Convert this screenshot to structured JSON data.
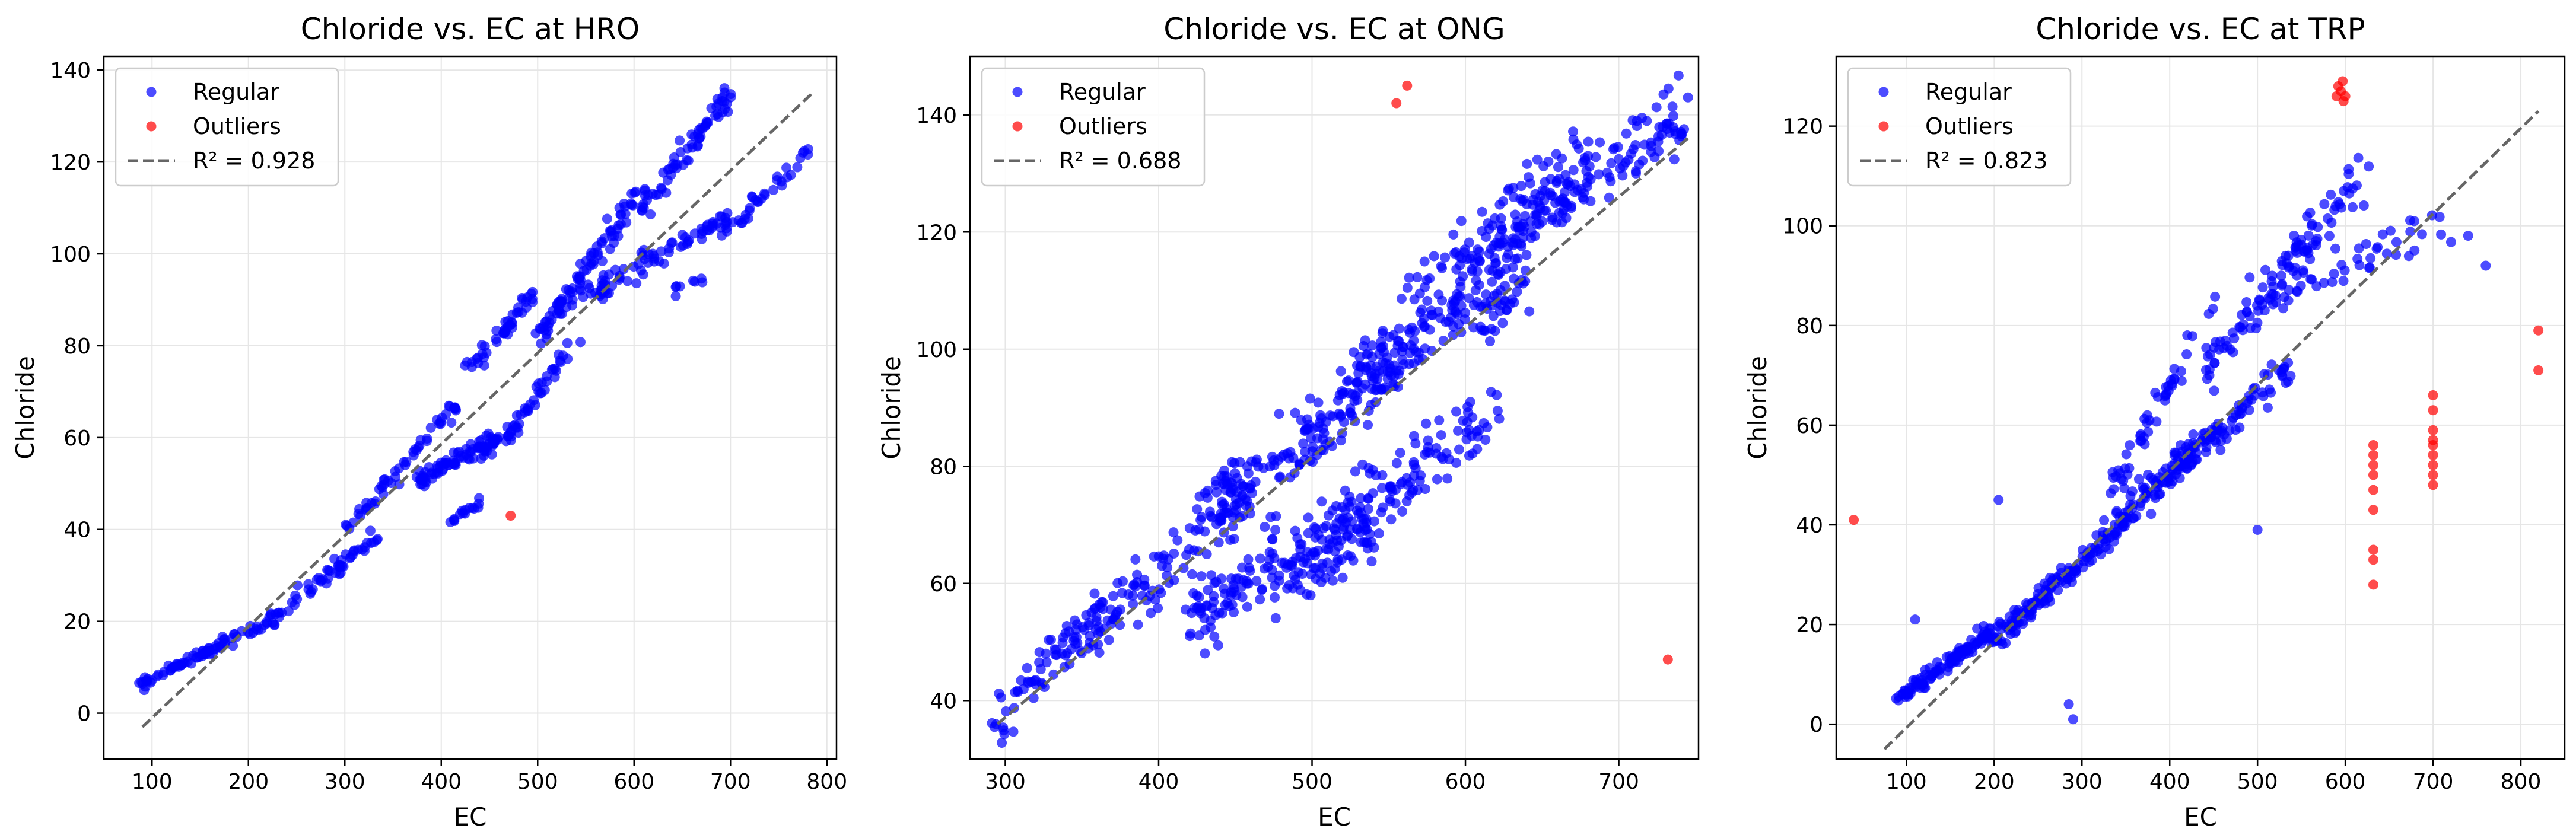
{
  "legend_labels": {
    "regular": "Regular",
    "outliers": "Outliers",
    "fit_prefix": "R² = "
  },
  "colors": {
    "regular": "#0000ff",
    "outliers": "#ff0000",
    "fit": "#666666",
    "grid": "#e6e6e6"
  },
  "chart_data": [
    {
      "type": "scatter",
      "title": "Chloride vs. EC at HRO",
      "xlabel": "EC",
      "ylabel": "Chloride",
      "xlim": [
        50,
        810
      ],
      "ylim": [
        -10,
        143
      ],
      "xticks": [
        100,
        200,
        300,
        400,
        500,
        600,
        700,
        800
      ],
      "yticks": [
        0,
        20,
        40,
        60,
        80,
        100,
        120,
        140
      ],
      "grid": true,
      "legend_position": "top-left",
      "r_squared": "0.928",
      "fit_line": {
        "x": [
          90,
          785
        ],
        "y": [
          -3,
          135
        ]
      },
      "series": [
        {
          "name": "Regular",
          "segments": [
            {
              "x0": 88,
              "y0": 6,
              "x1": 200,
              "y1": 18,
              "n": 70,
              "spread": 1.5
            },
            {
              "x0": 200,
              "y0": 17,
              "x1": 330,
              "y1": 38,
              "n": 70,
              "spread": 2.5
            },
            {
              "x0": 300,
              "y0": 40,
              "x1": 420,
              "y1": 68,
              "n": 55,
              "spread": 2.5
            },
            {
              "x0": 370,
              "y0": 50,
              "x1": 480,
              "y1": 62,
              "n": 95,
              "spread": 3
            },
            {
              "x0": 400,
              "y0": 40,
              "x1": 440,
              "y1": 46,
              "n": 15,
              "spread": 1.5
            },
            {
              "x0": 430,
              "y0": 75,
              "x1": 500,
              "y1": 92,
              "n": 45,
              "spread": 2.5
            },
            {
              "x0": 470,
              "y0": 60,
              "x1": 540,
              "y1": 82,
              "n": 35,
              "spread": 2.5
            },
            {
              "x0": 500,
              "y0": 82,
              "x1": 600,
              "y1": 112,
              "n": 80,
              "spread": 3.5
            },
            {
              "x0": 520,
              "y0": 88,
              "x1": 700,
              "y1": 108,
              "n": 90,
              "spread": 3.5
            },
            {
              "x0": 600,
              "y0": 108,
              "x1": 700,
              "y1": 135,
              "n": 70,
              "spread": 4
            },
            {
              "x0": 690,
              "y0": 104,
              "x1": 785,
              "y1": 122,
              "n": 35,
              "spread": 3
            },
            {
              "x0": 640,
              "y0": 92,
              "x1": 680,
              "y1": 96,
              "n": 8,
              "spread": 1.5
            }
          ]
        },
        {
          "name": "Outliers",
          "points": [
            [
              472,
              43
            ]
          ]
        }
      ]
    },
    {
      "type": "scatter",
      "title": "Chloride vs. EC at ONG",
      "xlabel": "EC",
      "ylabel": "Chloride",
      "xlim": [
        277,
        752
      ],
      "ylim": [
        30,
        150
      ],
      "xticks": [
        300,
        400,
        500,
        600,
        700
      ],
      "yticks": [
        40,
        60,
        80,
        100,
        120,
        140
      ],
      "grid": true,
      "legend_position": "top-left",
      "r_squared": "0.688",
      "fit_line": {
        "x": [
          295,
          745
        ],
        "y": [
          36,
          136
        ]
      },
      "series": [
        {
          "name": "Regular",
          "segments": [
            {
              "x0": 295,
              "y0": 36,
              "x1": 360,
              "y1": 55,
              "n": 60,
              "spread": 6
            },
            {
              "x0": 340,
              "y0": 48,
              "x1": 460,
              "y1": 78,
              "n": 130,
              "spread": 7
            },
            {
              "x0": 420,
              "y0": 55,
              "x1": 540,
              "y1": 70,
              "n": 160,
              "spread": 8
            },
            {
              "x0": 440,
              "y0": 72,
              "x1": 560,
              "y1": 98,
              "n": 150,
              "spread": 8
            },
            {
              "x0": 500,
              "y0": 65,
              "x1": 620,
              "y1": 90,
              "n": 140,
              "spread": 8
            },
            {
              "x0": 520,
              "y0": 95,
              "x1": 640,
              "y1": 112,
              "n": 150,
              "spread": 8
            },
            {
              "x0": 560,
              "y0": 105,
              "x1": 680,
              "y1": 132,
              "n": 140,
              "spread": 9
            },
            {
              "x0": 620,
              "y0": 120,
              "x1": 745,
              "y1": 140,
              "n": 120,
              "spread": 8
            }
          ]
        },
        {
          "name": "Outliers",
          "points": [
            [
              555,
              142
            ],
            [
              562,
              145
            ],
            [
              732,
              47
            ]
          ]
        }
      ]
    },
    {
      "type": "scatter",
      "title": "Chloride vs. EC at TRP",
      "xlabel": "EC",
      "ylabel": "Chloride",
      "xlim": [
        20,
        850
      ],
      "ylim": [
        -7,
        134
      ],
      "xticks": [
        100,
        200,
        300,
        400,
        500,
        600,
        700,
        800
      ],
      "yticks": [
        0,
        20,
        40,
        60,
        80,
        100,
        120
      ],
      "grid": true,
      "legend_position": "top-left",
      "r_squared": "0.823",
      "fit_line": {
        "x": [
          75,
          820
        ],
        "y": [
          -5,
          123
        ]
      },
      "series": [
        {
          "name": "Regular",
          "segments": [
            {
              "x0": 90,
              "y0": 5,
              "x1": 200,
              "y1": 19,
              "n": 110,
              "spread": 2
            },
            {
              "x0": 200,
              "y0": 17,
              "x1": 320,
              "y1": 36,
              "n": 120,
              "spread": 3
            },
            {
              "x0": 320,
              "y0": 36,
              "x1": 440,
              "y1": 58,
              "n": 100,
              "spread": 4
            },
            {
              "x0": 400,
              "y0": 50,
              "x1": 540,
              "y1": 72,
              "n": 90,
              "spread": 4
            },
            {
              "x0": 330,
              "y0": 45,
              "x1": 460,
              "y1": 88,
              "n": 50,
              "spread": 3
            },
            {
              "x0": 440,
              "y0": 72,
              "x1": 620,
              "y1": 110,
              "n": 110,
              "spread": 6
            },
            {
              "x0": 520,
              "y0": 85,
              "x1": 720,
              "y1": 100,
              "n": 45,
              "spread": 6
            }
          ],
          "points": [
            [
              110,
              21
            ],
            [
              205,
              45
            ],
            [
              285,
              4
            ],
            [
              290,
              1
            ],
            [
              500,
              39
            ],
            [
              740,
              98
            ],
            [
              760,
              92
            ]
          ]
        },
        {
          "name": "Outliers",
          "points": [
            [
              40,
              41
            ],
            [
              590,
              126
            ],
            [
              592,
              128
            ],
            [
              595,
              127
            ],
            [
              597,
              129
            ],
            [
              598,
              125
            ],
            [
              600,
              126
            ],
            [
              632,
              28
            ],
            [
              632,
              33
            ],
            [
              632,
              35
            ],
            [
              632,
              43
            ],
            [
              632,
              47
            ],
            [
              632,
              50
            ],
            [
              632,
              52
            ],
            [
              632,
              54
            ],
            [
              632,
              56
            ],
            [
              700,
              48
            ],
            [
              700,
              50
            ],
            [
              700,
              52
            ],
            [
              700,
              54
            ],
            [
              700,
              56
            ],
            [
              700,
              57
            ],
            [
              700,
              59
            ],
            [
              700,
              63
            ],
            [
              700,
              66
            ],
            [
              820,
              71
            ],
            [
              820,
              79
            ]
          ]
        }
      ]
    }
  ]
}
